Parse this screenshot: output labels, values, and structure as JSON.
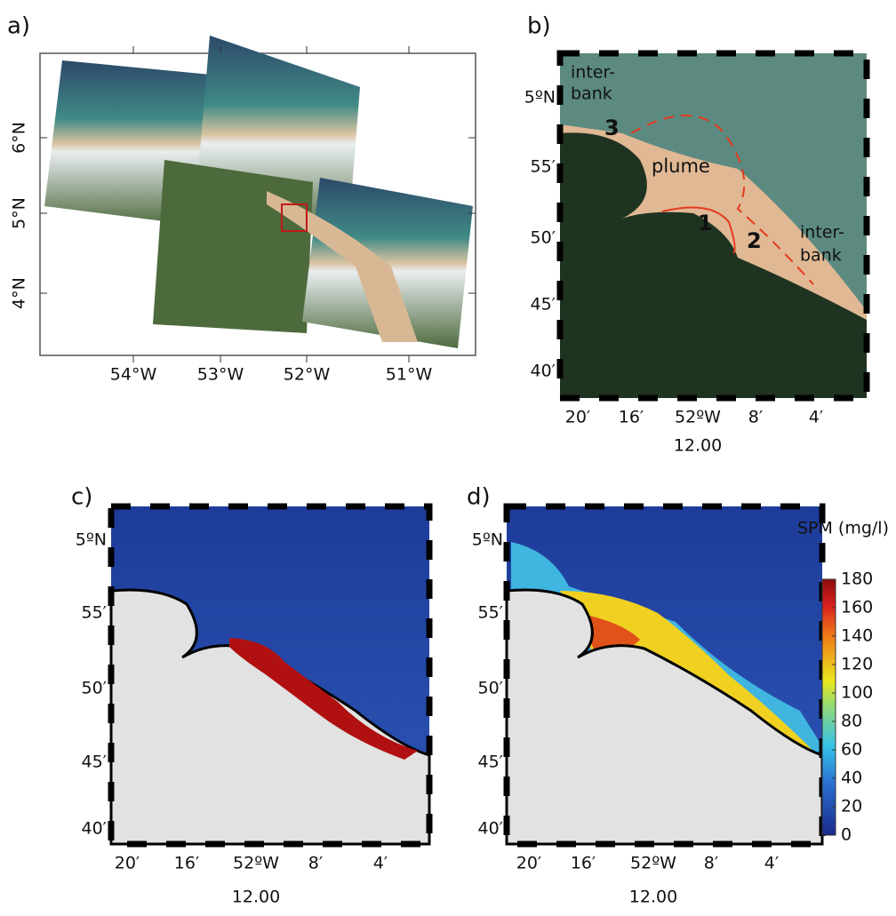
{
  "panel_a": {
    "label": "a)",
    "lat_labels": [
      "6°N",
      "5°N",
      "4°N"
    ],
    "lon_labels": [
      "54°W",
      "53°W",
      "52°W",
      "51°W"
    ]
  },
  "panel_b": {
    "label": "b)",
    "lat_labels": [
      "5ºN",
      "55′",
      "50′",
      "45′",
      "40′"
    ],
    "lon_labels": [
      "20′",
      "16′",
      "52ºW",
      "8′",
      "4′"
    ],
    "time": "12.00",
    "annotations": [
      "inter-",
      "bank",
      "inter-",
      "bank",
      "plume",
      "1",
      "2",
      "3"
    ]
  },
  "panel_c": {
    "label": "c)",
    "lat_labels": [
      "5ºN",
      "55′",
      "50′",
      "45′",
      "40′"
    ],
    "lon_labels": [
      "20′",
      "16′",
      "52ºW",
      "8′",
      "4′"
    ],
    "time": "12.00"
  },
  "panel_d": {
    "label": "d)",
    "lat_labels": [
      "5ºN",
      "55′",
      "50′",
      "45′",
      "40′"
    ],
    "lon_labels": [
      "20′",
      "16′",
      "52ºW",
      "8′",
      "4′"
    ],
    "time": "12.00"
  },
  "colorbar": {
    "title": "SPM (mg/l)",
    "range": [
      0,
      180
    ],
    "ticks": [
      0,
      20,
      40,
      60,
      80,
      100,
      120,
      140,
      160,
      180
    ]
  }
}
